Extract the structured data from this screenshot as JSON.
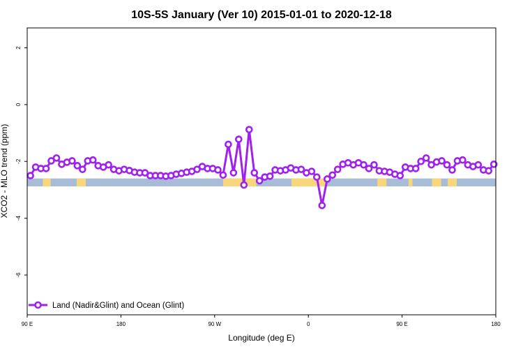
{
  "chart_data": {
    "type": "line",
    "title": "10S-5S January (Ver 10)   2015-01-01 to 2020-12-18",
    "xlabel": "Longitude (deg E)",
    "ylabel": "XCO2 - MLO trend (ppm)",
    "xlim": [
      90,
      450
    ],
    "ylim": [
      -7.4,
      2.7
    ],
    "x_ticks": [
      {
        "value": 90,
        "label": "90 E"
      },
      {
        "value": 162,
        "label": "180"
      },
      {
        "value": 234,
        "label": "90 W"
      },
      {
        "value": 306,
        "label": "0"
      },
      {
        "value": 378,
        "label": "90 E"
      },
      {
        "value": 450,
        "label": "180"
      }
    ],
    "y_ticks": [
      {
        "value": 2,
        "label": "2"
      },
      {
        "value": 0,
        "label": "0"
      },
      {
        "value": -2,
        "label": "-2"
      },
      {
        "value": -4,
        "label": "-4"
      },
      {
        "value": -6,
        "label": "-6"
      }
    ],
    "grid": false,
    "legend_position": "bottom-left",
    "series": [
      {
        "name": "Land (Nadir&Glint) and Ocean (Glint)",
        "color": "#a020f0",
        "x": [
          92.5,
          96.5,
          100.5,
          104.5,
          108.5,
          112.5,
          116.5,
          120.5,
          124.5,
          128.5,
          132.5,
          136.5,
          140.5,
          144.5,
          148.5,
          152.5,
          156.5,
          160.5,
          164.5,
          168.5,
          172.5,
          176.5,
          180.5,
          184.5,
          188.5,
          192.5,
          196.5,
          200.5,
          204.5,
          208.5,
          212.5,
          216.5,
          220.5,
          224.5,
          228.5,
          232.5,
          236.5,
          240.5,
          244.5,
          248.5,
          252.5,
          256.5,
          260.5,
          264.5,
          268.5,
          272.5,
          276.5,
          280.5,
          284.5,
          288.5,
          292.5,
          296.5,
          300.5,
          304.5,
          308.5,
          312.5,
          316.5,
          320.5,
          324.5,
          328.5,
          332.5,
          336.5,
          340.5,
          344.5,
          348.5,
          352.5,
          356.5,
          360.5,
          364.5,
          368.5,
          372.5,
          376.5,
          380.5,
          384.5,
          388.5,
          392.5,
          396.5,
          400.5,
          404.5,
          408.5,
          412.5,
          416.5,
          420.5,
          424.5,
          428.5,
          432.5,
          436.5,
          440.5,
          444.5,
          448.5
        ],
        "y": [
          -2.5,
          -2.2,
          -2.25,
          -2.25,
          -1.98,
          -1.88,
          -2.1,
          -2.03,
          -1.98,
          -2.15,
          -2.28,
          -1.98,
          -1.95,
          -2.15,
          -2.2,
          -2.12,
          -2.28,
          -2.33,
          -2.28,
          -2.32,
          -2.38,
          -2.4,
          -2.4,
          -2.5,
          -2.5,
          -2.5,
          -2.52,
          -2.5,
          -2.45,
          -2.42,
          -2.38,
          -2.35,
          -2.28,
          -2.18,
          -2.25,
          -2.25,
          -2.3,
          -2.48,
          -1.4,
          -2.4,
          -1.22,
          -2.83,
          -0.88,
          -2.4,
          -2.68,
          -2.55,
          -2.52,
          -2.3,
          -2.33,
          -2.3,
          -2.23,
          -2.3,
          -2.28,
          -2.4,
          -2.35,
          -2.55,
          -3.55,
          -2.62,
          -2.48,
          -2.28,
          -2.1,
          -2.05,
          -2.12,
          -2.05,
          -2.12,
          -2.25,
          -2.12,
          -2.33,
          -2.35,
          -2.38,
          -2.45,
          -2.5,
          -2.2,
          -2.25,
          -2.25,
          -2.0,
          -1.88,
          -2.12,
          -2.02,
          -1.98,
          -2.12,
          -2.3,
          -1.98,
          -1.95,
          -2.12,
          -2.18,
          -2.12,
          -2.3,
          -2.33,
          -2.1
        ]
      }
    ],
    "background_band": {
      "y_range": [
        -2.88,
        -2.6
      ],
      "ocean_color": "#a8bcd8",
      "land_color": "#f7d67c",
      "land_segments": [
        [
          102,
          108
        ],
        [
          128,
          135
        ],
        [
          240.5,
          266
        ],
        [
          293,
          305
        ],
        [
          302,
          320
        ],
        [
          359,
          366
        ],
        [
          383,
          386
        ],
        [
          401,
          408
        ],
        [
          413,
          420
        ]
      ]
    }
  }
}
